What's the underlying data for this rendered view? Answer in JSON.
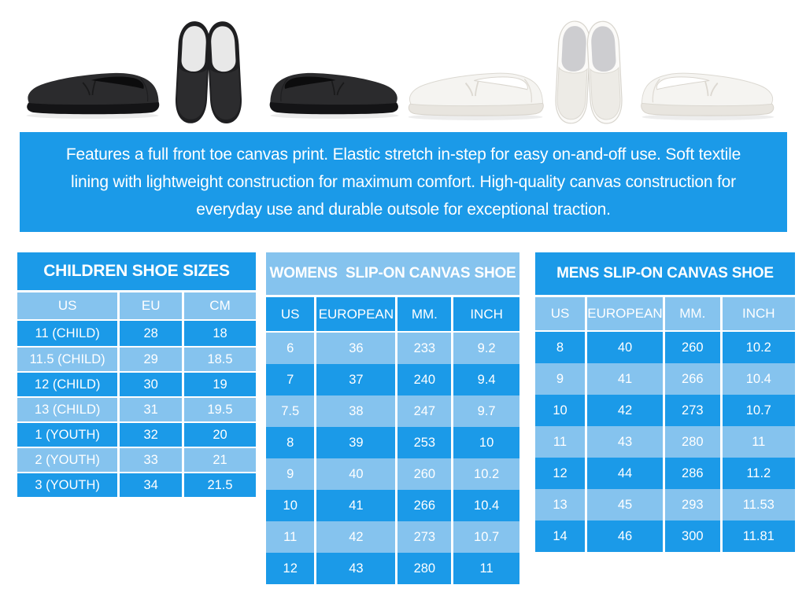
{
  "colors": {
    "primary_blue": "#1b9ae8",
    "light_blue": "#85c3ee",
    "text_white": "#ffffff"
  },
  "gallery": {
    "images": [
      "black-slip-on-side-view-facing-left",
      "black-slip-on-top-view-pair",
      "black-slip-on-side-view-facing-right",
      "white-slip-on-side-view-facing-left",
      "white-slip-on-top-view-pair",
      "white-slip-on-side-view-facing-right"
    ]
  },
  "banner": {
    "lines": [
      "Features a full front toe canvas print. Elastic stretch in-step for easy on-and-off use. Soft textile",
      "lining with lightweight construction for maximum comfort. High-quality canvas construction for",
      "everyday use and durable outsole for exceptional traction."
    ]
  },
  "tables": {
    "children": {
      "title": "CHILDREN SHOE SIZES",
      "columns": [
        "US",
        "EU",
        "CM"
      ],
      "rows": [
        [
          "11 (CHILD)",
          "28",
          "18"
        ],
        [
          "11.5 (CHILD)",
          "29",
          "18.5"
        ],
        [
          "12 (CHILD)",
          "30",
          "19"
        ],
        [
          "13 (CHILD)",
          "31",
          "19.5"
        ],
        [
          "1 (YOUTH)",
          "32",
          "20"
        ],
        [
          "2 (YOUTH)",
          "33",
          "21"
        ],
        [
          "3 (YOUTH)",
          "34",
          "21.5"
        ]
      ]
    },
    "womens": {
      "title": "WOMENS  SLIP-ON CANVAS SHOE",
      "columns": [
        "US",
        "EUROPEAN",
        "MM.",
        "INCH"
      ],
      "rows": [
        [
          "6",
          "36",
          "233",
          "9.2"
        ],
        [
          "7",
          "37",
          "240",
          "9.4"
        ],
        [
          "7.5",
          "38",
          "247",
          "9.7"
        ],
        [
          "8",
          "39",
          "253",
          "10"
        ],
        [
          "9",
          "40",
          "260",
          "10.2"
        ],
        [
          "10",
          "41",
          "266",
          "10.4"
        ],
        [
          "11",
          "42",
          "273",
          "10.7"
        ],
        [
          "12",
          "43",
          "280",
          "11"
        ]
      ]
    },
    "mens": {
      "title": "MENS SLIP-ON CANVAS SHOE",
      "columns": [
        "US",
        "EUROPEAN",
        "MM.",
        "INCH"
      ],
      "rows": [
        [
          "8",
          "40",
          "260",
          "10.2"
        ],
        [
          "9",
          "41",
          "266",
          "10.4"
        ],
        [
          "10",
          "42",
          "273",
          "10.7"
        ],
        [
          "11",
          "43",
          "280",
          "11"
        ],
        [
          "12",
          "44",
          "286",
          "11.2"
        ],
        [
          "13",
          "45",
          "293",
          "11.53"
        ],
        [
          "14",
          "46",
          "300",
          "11.81"
        ]
      ]
    }
  }
}
